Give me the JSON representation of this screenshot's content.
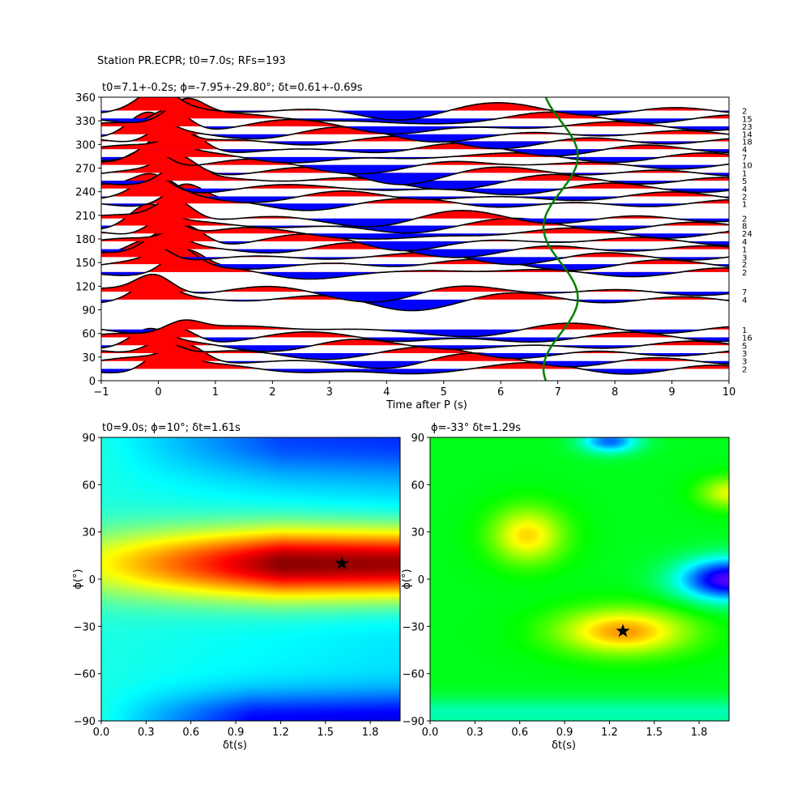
{
  "figure": {
    "suptitle": "Station PR.ECPR; t0=7.0s; RFs=193"
  },
  "chart_data": [
    {
      "type": "line",
      "title": "t0=7.1+-0.2s; ϕ=-7.95+-29.80°; δt=0.61+-0.69s",
      "xlabel": "Time after P (s)",
      "ylabel": "",
      "xlim": [
        -1,
        10
      ],
      "ylim": [
        0,
        360
      ],
      "xticks": [
        -1,
        0,
        1,
        2,
        3,
        4,
        5,
        6,
        7,
        8,
        9,
        10
      ],
      "yticks": [
        0,
        30,
        60,
        90,
        120,
        150,
        180,
        210,
        240,
        270,
        300,
        330,
        360
      ],
      "fill_positive": "#ff0000",
      "fill_negative": "#0000ff",
      "trace_color": "#000000",
      "curve_color": "#008000",
      "traces": [
        {
          "baz": 15,
          "count": "2",
          "peak": 1.0
        },
        {
          "baz": 25,
          "count": "3",
          "peak": 0.8
        },
        {
          "baz": 35,
          "count": "3",
          "peak": 0.7
        },
        {
          "baz": 45,
          "count": "5",
          "peak": 0.75
        },
        {
          "baz": 55,
          "count": "16",
          "peak": 0.65
        },
        {
          "baz": 65,
          "count": "1",
          "peak": 0.55
        },
        {
          "baz": 103,
          "count": "4",
          "peak": 0.8
        },
        {
          "baz": 113,
          "count": "7",
          "peak": 0.9
        },
        {
          "baz": 138,
          "count": "2",
          "peak": 0.95
        },
        {
          "baz": 148,
          "count": "2",
          "peak": 0.85
        },
        {
          "baz": 157,
          "count": "3",
          "peak": 0.9
        },
        {
          "baz": 167,
          "count": "1",
          "peak": 0.85
        },
        {
          "baz": 177,
          "count": "4",
          "peak": 0.9
        },
        {
          "baz": 187,
          "count": "24",
          "peak": 0.95
        },
        {
          "baz": 197,
          "count": "8",
          "peak": 1.0
        },
        {
          "baz": 206,
          "count": "2",
          "peak": 1.0
        },
        {
          "baz": 225,
          "count": "1",
          "peak": 0.9
        },
        {
          "baz": 234,
          "count": "2",
          "peak": 0.85
        },
        {
          "baz": 244,
          "count": "4",
          "peak": 0.8
        },
        {
          "baz": 254,
          "count": "5",
          "peak": 0.9
        },
        {
          "baz": 264,
          "count": "1",
          "peak": 0.85
        },
        {
          "baz": 274,
          "count": "10",
          "peak": 0.95
        },
        {
          "baz": 284,
          "count": "7",
          "peak": 0.9
        },
        {
          "baz": 294,
          "count": "4",
          "peak": 0.9
        },
        {
          "baz": 304,
          "count": "18",
          "peak": 0.95
        },
        {
          "baz": 313,
          "count": "14",
          "peak": 1.0
        },
        {
          "baz": 323,
          "count": "23",
          "peak": 1.0
        },
        {
          "baz": 333,
          "count": "15",
          "peak": 0.95
        },
        {
          "baz": 343,
          "count": "2",
          "peak": 0.9
        }
      ],
      "green_curve": {
        "mean_time": 7.05,
        "amplitude": 0.3,
        "period_deg": 180,
        "phase_deg": 60
      }
    },
    {
      "type": "heatmap",
      "title": "t0=9.0s; ϕ=10°; δt=1.61s",
      "xlabel": "δt(s)",
      "ylabel": "ϕ(°)",
      "xlim": [
        0,
        2
      ],
      "ylim": [
        -90,
        90
      ],
      "xticks": [
        "0.0",
        "0.3",
        "0.6",
        "0.9",
        "1.2",
        "1.5",
        "1.8"
      ],
      "yticks": [
        "90",
        "60",
        "30",
        "0",
        "−30",
        "−60",
        "−90"
      ],
      "star": {
        "dt": 1.61,
        "phi": 10
      },
      "colormap": "jet"
    },
    {
      "type": "heatmap",
      "title": "ϕ=-33° δt=1.29s",
      "xlabel": "δt(s)",
      "ylabel": "ϕ(°)",
      "xlim": [
        0,
        2
      ],
      "ylim": [
        -90,
        90
      ],
      "xticks": [
        "0.0",
        "0.3",
        "0.6",
        "0.9",
        "1.2",
        "1.5",
        "1.8"
      ],
      "yticks": [
        "90",
        "60",
        "30",
        "0",
        "−30",
        "−60",
        "−90"
      ],
      "star": {
        "dt": 1.29,
        "phi": -33
      },
      "colormap": "hsv"
    }
  ]
}
